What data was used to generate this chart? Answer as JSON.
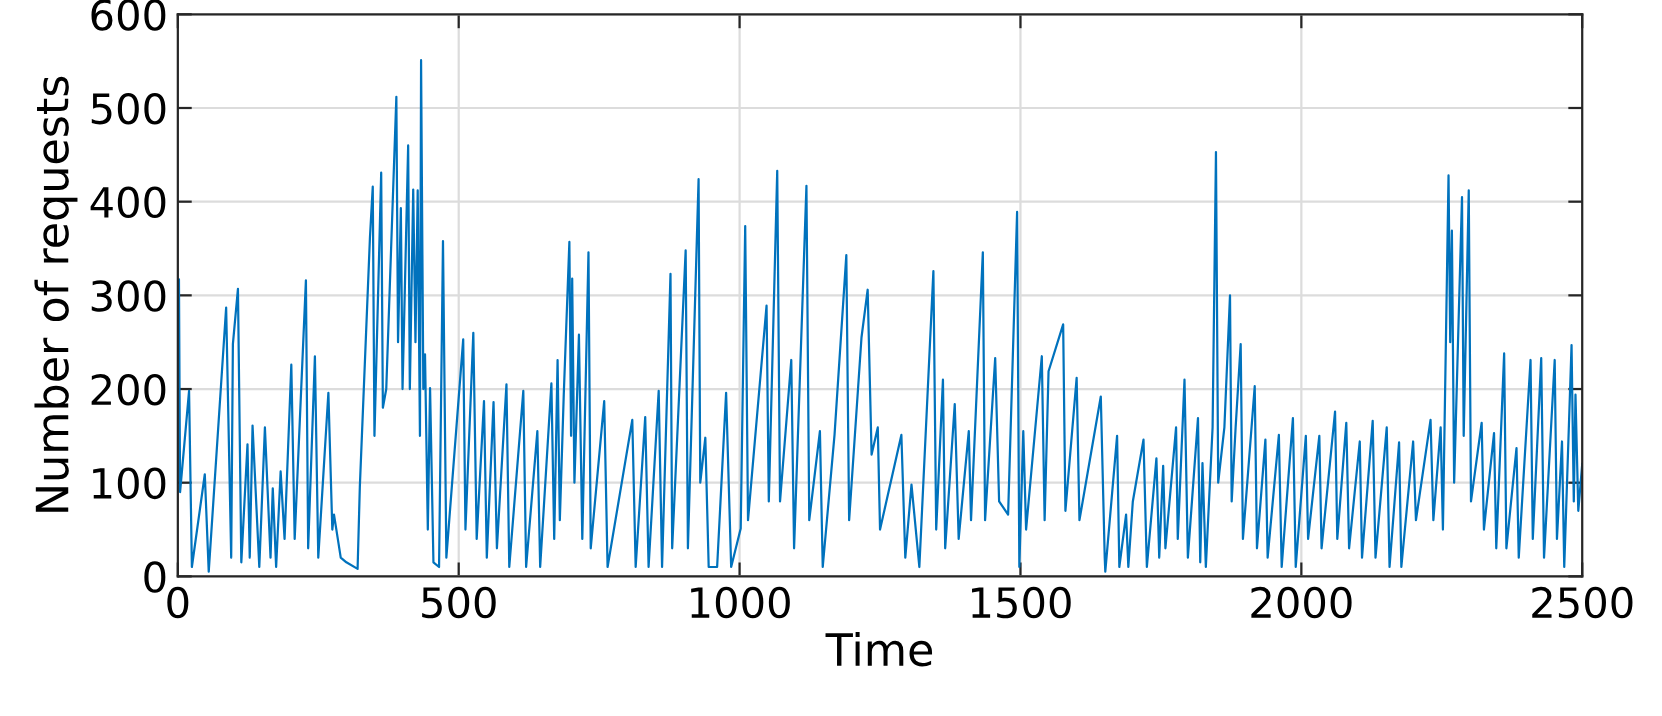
{
  "chart_data": {
    "type": "line",
    "xlabel": "Time",
    "ylabel": "Number of requests",
    "xlim": [
      0,
      2500
    ],
    "ylim": [
      0,
      600
    ],
    "xticks": [
      0,
      500,
      1000,
      1500,
      2000,
      2500
    ],
    "yticks": [
      0,
      100,
      200,
      300,
      400,
      500,
      600
    ],
    "grid": true,
    "legend": false,
    "marker": "none",
    "line_style": "solid",
    "series": [
      {
        "color": "#0072bd",
        "x": [
          0,
          2,
          4,
          20,
          25,
          48,
          55,
          86,
          95,
          98,
          107,
          113,
          124,
          128,
          133,
          145,
          155,
          165,
          169,
          175,
          183,
          190,
          202,
          208,
          228,
          232,
          244,
          250,
          268,
          275,
          278,
          290,
          300,
          320,
          324,
          342,
          347,
          350,
          362,
          365,
          371,
          389,
          392,
          397,
          400,
          410,
          413,
          419,
          423,
          427,
          431,
          433,
          437,
          440,
          445,
          449,
          455,
          465,
          472,
          478,
          508,
          512,
          526,
          532,
          545,
          550,
          562,
          568,
          585,
          590,
          615,
          620,
          640,
          645,
          665,
          670,
          676,
          680,
          687,
          697,
          700,
          702,
          706,
          714,
          720,
          731,
          735,
          759,
          765,
          809,
          815,
          832,
          838,
          856,
          862,
          877,
          880,
          904,
          908,
          927,
          930,
          939,
          945,
          960,
          976,
          985,
          1002,
          1010,
          1015,
          1048,
          1052,
          1067,
          1072,
          1092,
          1097,
          1119,
          1124,
          1143,
          1148,
          1169,
          1190,
          1195,
          1217,
          1228,
          1235,
          1246,
          1250,
          1288,
          1295,
          1306,
          1320,
          1345,
          1350,
          1362,
          1366,
          1383,
          1390,
          1408,
          1412,
          1433,
          1437,
          1455,
          1462,
          1478,
          1494,
          1498,
          1505,
          1510,
          1538,
          1543,
          1550,
          1576,
          1580,
          1600,
          1605,
          1643,
          1650,
          1651,
          1672,
          1676,
          1688,
          1692,
          1700,
          1719,
          1725,
          1742,
          1747,
          1754,
          1758,
          1777,
          1780,
          1792,
          1798,
          1816,
          1820,
          1824,
          1830,
          1842,
          1848,
          1852,
          1863,
          1873,
          1876,
          1883,
          1892,
          1896,
          1917,
          1921,
          1936,
          1940,
          1960,
          1965,
          1985,
          1990,
          2008,
          2012,
          2032,
          2036,
          2060,
          2064,
          2080,
          2085,
          2104,
          2108,
          2127,
          2132,
          2152,
          2157,
          2174,
          2178,
          2199,
          2204,
          2230,
          2235,
          2248,
          2252,
          2262,
          2265,
          2268,
          2272,
          2286,
          2289,
          2298,
          2302,
          2321,
          2325,
          2343,
          2347,
          2361,
          2365,
          2383,
          2387,
          2408,
          2412,
          2427,
          2432,
          2451,
          2455,
          2464,
          2468,
          2481,
          2485,
          2488,
          2493,
          2500
        ],
        "values": [
          310,
          317,
          90,
          198,
          10,
          109,
          5,
          287,
          20,
          248,
          307,
          15,
          141,
          20,
          161,
          10,
          159,
          20,
          94,
          10,
          112,
          40,
          226,
          40,
          316,
          30,
          235,
          20,
          196,
          50,
          66,
          20,
          15,
          8,
          96,
          362,
          416,
          150,
          431,
          180,
          200,
          512,
          250,
          393,
          200,
          460,
          200,
          413,
          250,
          412,
          150,
          551,
          200,
          237,
          50,
          201,
          15,
          10,
          358,
          20,
          253,
          50,
          260,
          40,
          187,
          20,
          186,
          30,
          205,
          10,
          198,
          10,
          155,
          10,
          206,
          40,
          231,
          60,
          194,
          357,
          150,
          318,
          100,
          258,
          40,
          346,
          30,
          187,
          10,
          167,
          10,
          170,
          10,
          198,
          10,
          323,
          30,
          348,
          30,
          424,
          100,
          148,
          10,
          10,
          196,
          10,
          51,
          374,
          60,
          289,
          80,
          433,
          80,
          231,
          30,
          417,
          60,
          155,
          10,
          151,
          343,
          60,
          255,
          306,
          130,
          159,
          50,
          151,
          20,
          98,
          10,
          326,
          50,
          210,
          30,
          184,
          40,
          155,
          60,
          346,
          60,
          233,
          80,
          66,
          389,
          10,
          155,
          50,
          235,
          60,
          219,
          269,
          70,
          212,
          60,
          192,
          20,
          5,
          150,
          10,
          66,
          10,
          80,
          146,
          10,
          126,
          20,
          118,
          30,
          159,
          40,
          210,
          20,
          169,
          15,
          121,
          10,
          159,
          453,
          100,
          159,
          300,
          80,
          159,
          248,
          40,
          203,
          30,
          146,
          20,
          151,
          10,
          169,
          10,
          150,
          40,
          150,
          30,
          176,
          40,
          164,
          30,
          144,
          20,
          166,
          20,
          159,
          10,
          143,
          10,
          144,
          60,
          167,
          60,
          159,
          50,
          428,
          250,
          369,
          100,
          405,
          150,
          412,
          80,
          164,
          50,
          153,
          30,
          238,
          30,
          137,
          20,
          231,
          40,
          233,
          20,
          231,
          40,
          144,
          10,
          247,
          80,
          194,
          70,
          120
        ]
      }
    ]
  }
}
